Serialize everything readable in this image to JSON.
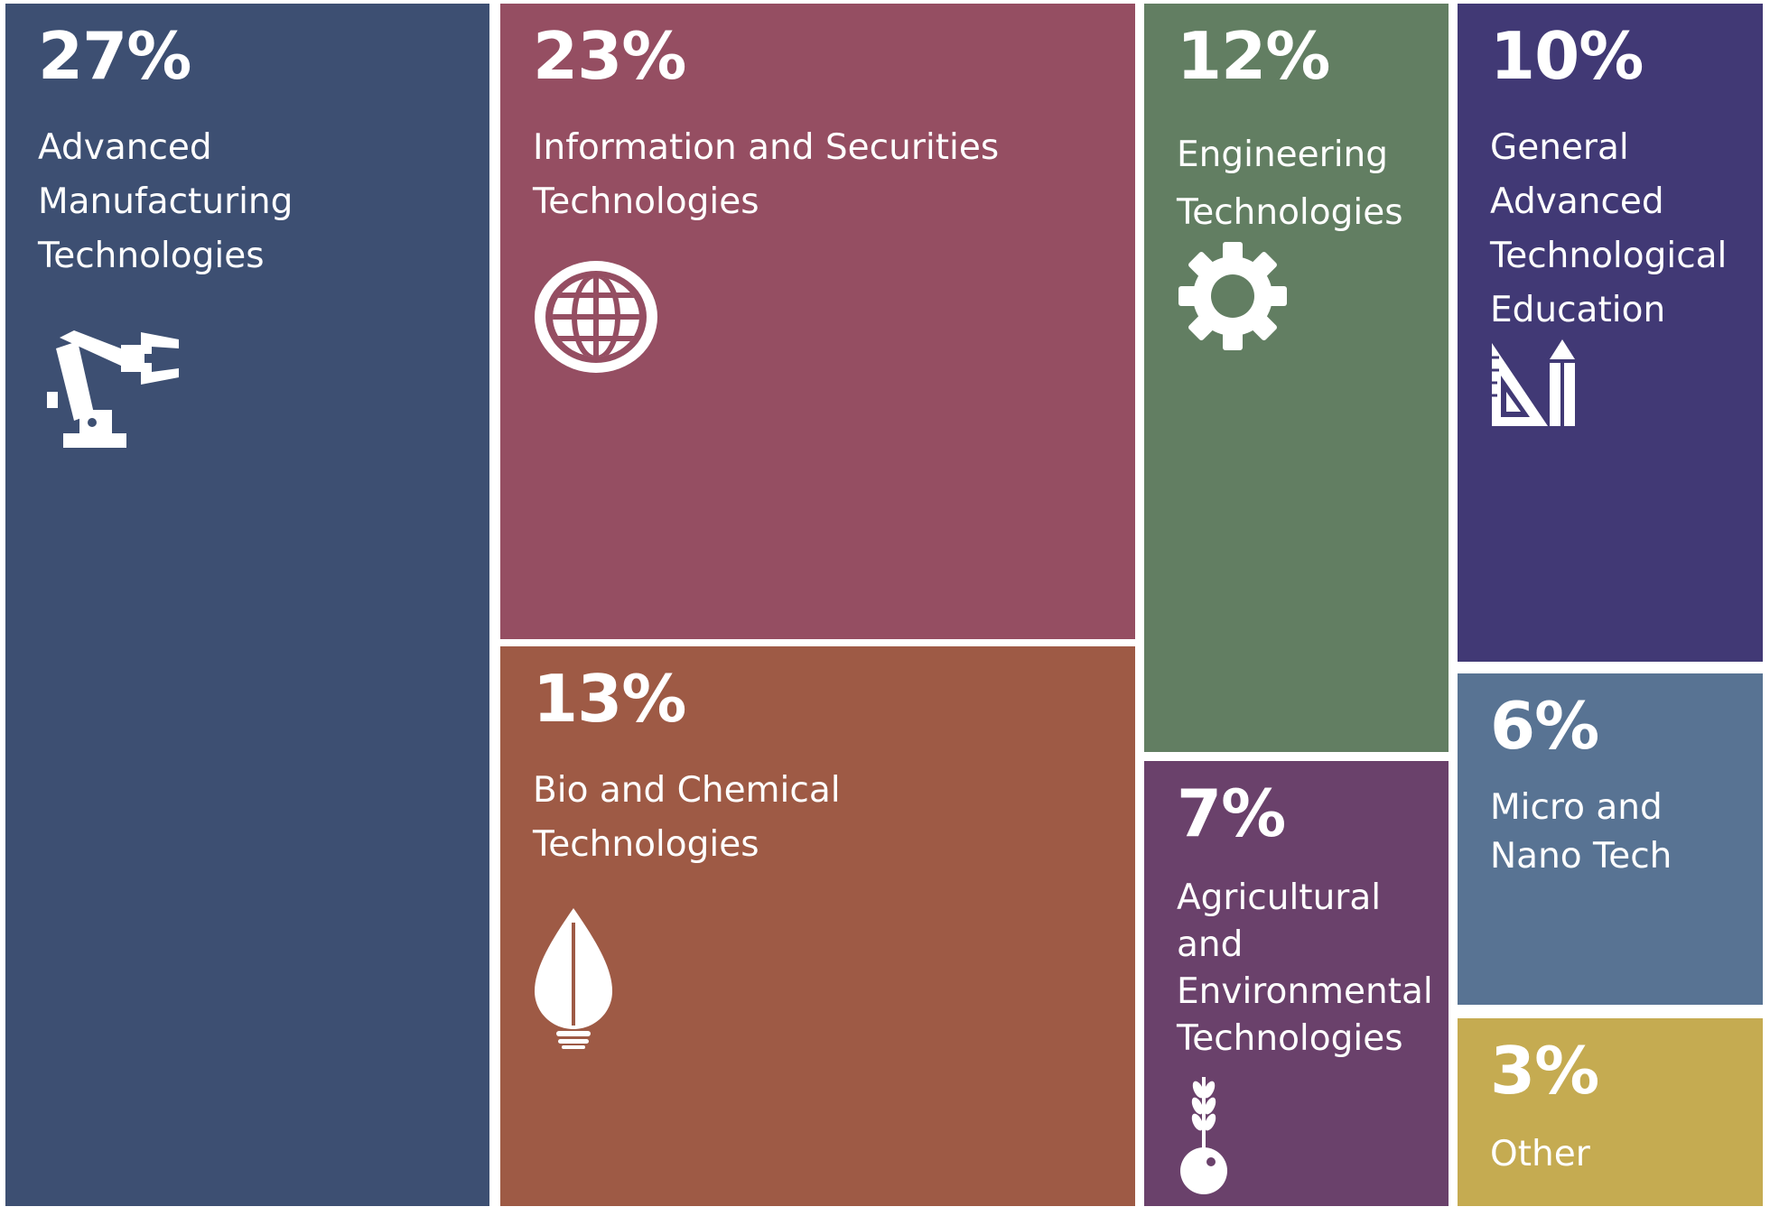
{
  "chart_data": {
    "type": "treemap",
    "title": "",
    "colors": {
      "advanced_manufacturing": "#3d4f72",
      "information_security": "#954e62",
      "bio_chemical": "#9e5a45",
      "engineering": "#627e62",
      "agricultural_environmental": "#6a416b",
      "general_education": "#413975",
      "micro_nano": "#587393",
      "other": "#c5ab51"
    },
    "items": [
      {
        "key": "advanced_manufacturing",
        "value": 27,
        "value_label": "27%",
        "label": "Advanced\nManufacturing\nTechnologies",
        "icon": "robot-arm-icon"
      },
      {
        "key": "information_security",
        "value": 23,
        "value_label": "23%",
        "label": "Information and Securities\nTechnologies",
        "icon": "globe-icon"
      },
      {
        "key": "bio_chemical",
        "value": 13,
        "value_label": "13%",
        "label": "Bio and Chemical\nTechnologies",
        "icon": "leaf-bulb-icon"
      },
      {
        "key": "engineering",
        "value": 12,
        "value_label": "12%",
        "label": "Engineering\nTechnologies",
        "icon": "gear-icon"
      },
      {
        "key": "agricultural_environmental",
        "value": 7,
        "value_label": "7%",
        "label": "Agricultural\nand\nEnvironmental\nTechnologies",
        "icon": "wheat-seed-icon"
      },
      {
        "key": "general_education",
        "value": 10,
        "value_label": "10%",
        "label": "General\nAdvanced\nTechnological\nEducation",
        "icon": "ruler-pencil-icon"
      },
      {
        "key": "micro_nano",
        "value": 6,
        "value_label": "6%",
        "label": "Micro and\nNano Tech",
        "icon": ""
      },
      {
        "key": "other",
        "value": 3,
        "value_label": "3%",
        "label": "Other",
        "icon": ""
      }
    ]
  }
}
